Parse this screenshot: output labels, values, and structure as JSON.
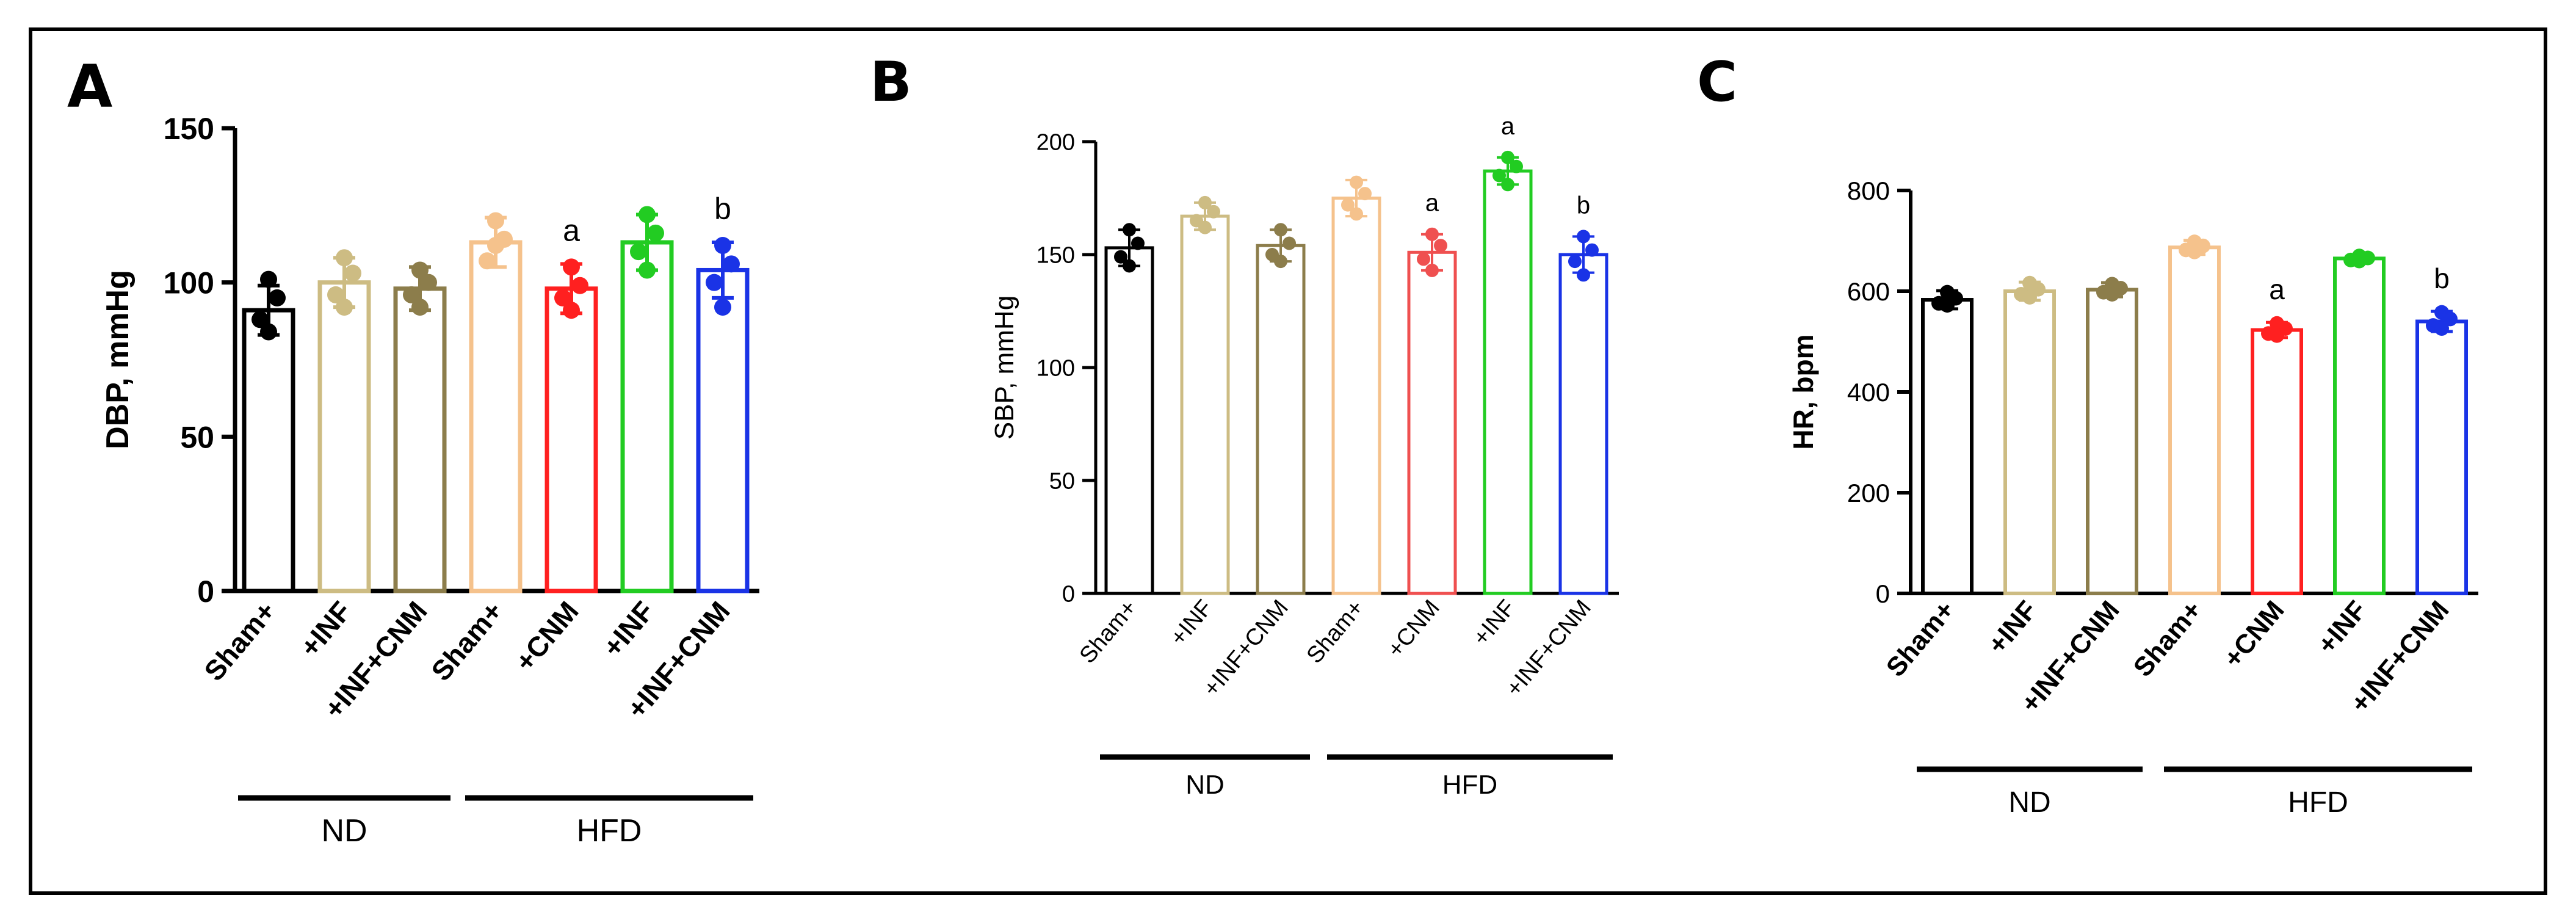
{
  "figure": {
    "frame": true
  },
  "chart_data": [
    {
      "panel_label": "A",
      "type": "bar",
      "ylabel": "DBP, mmHg",
      "ylim": [
        0,
        150
      ],
      "yticks": [
        0,
        50,
        100,
        150
      ],
      "categories": [
        "Sham+",
        "+INF",
        "+INF+CNM",
        "Sham+",
        "+CNM",
        "+INF",
        "+INF+CNM"
      ],
      "groups": [
        {
          "label": "ND",
          "indices": [
            0,
            1,
            2
          ]
        },
        {
          "label": "HFD",
          "indices": [
            3,
            4,
            5,
            6
          ]
        }
      ],
      "colors": [
        "#000000",
        "#cdbc83",
        "#8c7d4b",
        "#f5c28c",
        "#ff2020",
        "#22cc22",
        "#1a33e6"
      ],
      "values": [
        91,
        100,
        98,
        113,
        98,
        113,
        104
      ],
      "errors": [
        8,
        8,
        7,
        8,
        8,
        9,
        9
      ],
      "points": [
        [
          101,
          95,
          88,
          84
        ],
        [
          108,
          103,
          96,
          92
        ],
        [
          104,
          100,
          96,
          92
        ],
        [
          120,
          114,
          107,
          112
        ],
        [
          105,
          99,
          95,
          91
        ],
        [
          122,
          116,
          110,
          104
        ],
        [
          112,
          106,
          100,
          92
        ]
      ],
      "annotations": [
        {
          "index": 4,
          "text": "a"
        },
        {
          "index": 6,
          "text": "b"
        }
      ]
    },
    {
      "panel_label": "B",
      "type": "bar",
      "ylabel": "SBP, mmHg",
      "ylim": [
        0,
        200
      ],
      "yticks": [
        0,
        50,
        100,
        150,
        200
      ],
      "categories": [
        "Sham+",
        "+INF",
        "+INF+CNM",
        "Sham+",
        "+CNM",
        "+INF",
        "+INF+CNM"
      ],
      "groups": [
        {
          "label": "ND",
          "indices": [
            0,
            1,
            2
          ]
        },
        {
          "label": "HFD",
          "indices": [
            3,
            4,
            5,
            6
          ]
        }
      ],
      "colors": [
        "#000000",
        "#cdbc83",
        "#8c7d4b",
        "#f5c28c",
        "#ef5050",
        "#22cc22",
        "#1a33e6"
      ],
      "values": [
        153,
        167,
        154,
        175,
        151,
        187,
        150
      ],
      "errors": [
        8,
        6,
        7,
        8,
        8,
        6,
        8
      ],
      "points": [
        [
          161,
          155,
          149,
          145
        ],
        [
          173,
          169,
          165,
          162
        ],
        [
          161,
          155,
          150,
          147
        ],
        [
          182,
          177,
          172,
          168
        ],
        [
          159,
          154,
          148,
          143
        ],
        [
          193,
          189,
          185,
          181
        ],
        [
          158,
          152,
          147,
          141
        ]
      ],
      "annotations": [
        {
          "index": 4,
          "text": "a"
        },
        {
          "index": 5,
          "text": "a"
        },
        {
          "index": 6,
          "text": "b"
        }
      ]
    },
    {
      "panel_label": "C",
      "type": "bar",
      "ylabel": "HR, bpm",
      "ylim": [
        0,
        800
      ],
      "yticks": [
        0,
        200,
        400,
        600,
        800
      ],
      "categories": [
        "Sham+",
        "+INF",
        "+INF+CNM",
        "Sham+",
        "+CNM",
        "+INF",
        "+INF+CNM"
      ],
      "groups": [
        {
          "label": "ND",
          "indices": [
            0,
            1,
            2
          ]
        },
        {
          "label": "HFD",
          "indices": [
            3,
            4,
            5,
            6
          ]
        }
      ],
      "colors": [
        "#000000",
        "#cdbc83",
        "#8c7d4b",
        "#f5c28c",
        "#ff2020",
        "#22cc22",
        "#1a33e6"
      ],
      "values": [
        583,
        600,
        603,
        687,
        523,
        665,
        540
      ],
      "errors": [
        18,
        18,
        14,
        14,
        15,
        6,
        20
      ],
      "points": [
        [
          598,
          586,
          576,
          572
        ],
        [
          616,
          604,
          594,
          588
        ],
        [
          614,
          606,
          598,
          594
        ],
        [
          698,
          690,
          682,
          678
        ],
        [
          536,
          526,
          516,
          512
        ],
        [
          670,
          666,
          662,
          660
        ],
        [
          558,
          545,
          532,
          526
        ]
      ],
      "annotations": [
        {
          "index": 4,
          "text": "a"
        },
        {
          "index": 6,
          "text": "b"
        }
      ]
    }
  ]
}
